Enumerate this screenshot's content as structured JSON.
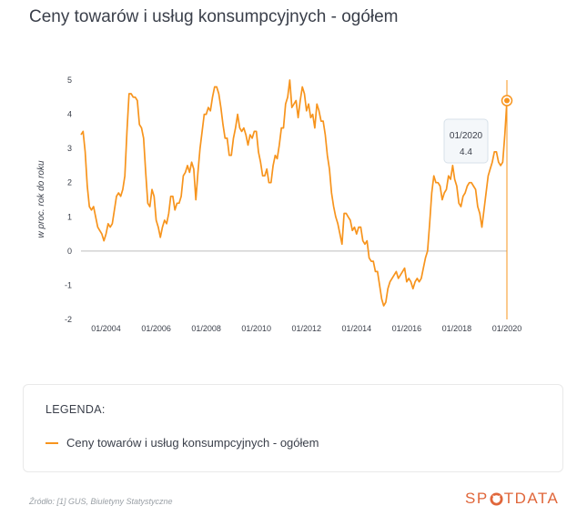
{
  "title": "Ceny towarów i usług konsumpcyjnych - ogółem",
  "legend": {
    "title": "LEGENDA:",
    "item_label": "Ceny towarów i usług konsumpcyjnych - ogółem"
  },
  "source": "Źródło: [1] GUS, Biuletyny Statystyczne",
  "brand": {
    "left": "SP",
    "right": "TDATA",
    "mark_icon": "lifebuoy-icon"
  },
  "colors": {
    "series": "#f7941d",
    "axis_zero": "#bdbdbd",
    "grid": "#eeeeee",
    "text": "#3a3f4a",
    "brand": "#e0663a"
  },
  "tooltip": {
    "date": "01/2020",
    "value": "4.4"
  },
  "chart_data": {
    "type": "line",
    "title": "Ceny towarów i usług konsumpcyjnych - ogółem",
    "ylabel": "w proc. rok do roku",
    "ylim": [
      -2,
      5
    ],
    "yticks": [
      "5",
      "4",
      "3",
      "2",
      "1",
      "0",
      "-1",
      "-2"
    ],
    "xlim": [
      "01/2003",
      "01/2020"
    ],
    "xticks": [
      "01/2004",
      "01/2006",
      "01/2008",
      "01/2010",
      "01/2012",
      "01/2014",
      "01/2016",
      "01/2018",
      "01/2020"
    ],
    "grid": false,
    "legend_position": "bottom",
    "series": [
      {
        "name": "Ceny towarów i usług konsumpcyjnych - ogółem",
        "x": [
          "01/2003",
          "02/2003",
          "03/2003",
          "04/2003",
          "05/2003",
          "06/2003",
          "07/2003",
          "08/2003",
          "09/2003",
          "10/2003",
          "11/2003",
          "12/2003",
          "01/2004",
          "02/2004",
          "03/2004",
          "04/2004",
          "05/2004",
          "06/2004",
          "07/2004",
          "08/2004",
          "09/2004",
          "10/2004",
          "11/2004",
          "12/2004",
          "01/2005",
          "02/2005",
          "03/2005",
          "04/2005",
          "05/2005",
          "06/2005",
          "07/2005",
          "08/2005",
          "09/2005",
          "10/2005",
          "11/2005",
          "12/2005",
          "01/2006",
          "02/2006",
          "03/2006",
          "04/2006",
          "05/2006",
          "06/2006",
          "07/2006",
          "08/2006",
          "09/2006",
          "10/2006",
          "11/2006",
          "12/2006",
          "01/2007",
          "02/2007",
          "03/2007",
          "04/2007",
          "05/2007",
          "06/2007",
          "07/2007",
          "08/2007",
          "09/2007",
          "10/2007",
          "11/2007",
          "12/2007",
          "01/2008",
          "02/2008",
          "03/2008",
          "04/2008",
          "05/2008",
          "06/2008",
          "07/2008",
          "08/2008",
          "09/2008",
          "10/2008",
          "11/2008",
          "12/2008",
          "01/2009",
          "02/2009",
          "03/2009",
          "04/2009",
          "05/2009",
          "06/2009",
          "07/2009",
          "08/2009",
          "09/2009",
          "10/2009",
          "11/2009",
          "12/2009",
          "01/2010",
          "02/2010",
          "03/2010",
          "04/2010",
          "05/2010",
          "06/2010",
          "07/2010",
          "08/2010",
          "09/2010",
          "10/2010",
          "11/2010",
          "12/2010",
          "01/2011",
          "02/2011",
          "03/2011",
          "04/2011",
          "05/2011",
          "06/2011",
          "07/2011",
          "08/2011",
          "09/2011",
          "10/2011",
          "11/2011",
          "12/2011",
          "01/2012",
          "02/2012",
          "03/2012",
          "04/2012",
          "05/2012",
          "06/2012",
          "07/2012",
          "08/2012",
          "09/2012",
          "10/2012",
          "11/2012",
          "12/2012",
          "01/2013",
          "02/2013",
          "03/2013",
          "04/2013",
          "05/2013",
          "06/2013",
          "07/2013",
          "08/2013",
          "09/2013",
          "10/2013",
          "11/2013",
          "12/2013",
          "01/2014",
          "02/2014",
          "03/2014",
          "04/2014",
          "05/2014",
          "06/2014",
          "07/2014",
          "08/2014",
          "09/2014",
          "10/2014",
          "11/2014",
          "12/2014",
          "01/2015",
          "02/2015",
          "03/2015",
          "04/2015",
          "05/2015",
          "06/2015",
          "07/2015",
          "08/2015",
          "09/2015",
          "10/2015",
          "11/2015",
          "12/2015",
          "01/2016",
          "02/2016",
          "03/2016",
          "04/2016",
          "05/2016",
          "06/2016",
          "07/2016",
          "08/2016",
          "09/2016",
          "10/2016",
          "11/2016",
          "12/2016",
          "01/2017",
          "02/2017",
          "03/2017",
          "04/2017",
          "05/2017",
          "06/2017",
          "07/2017",
          "08/2017",
          "09/2017",
          "10/2017",
          "11/2017",
          "12/2017",
          "01/2018",
          "02/2018",
          "03/2018",
          "04/2018",
          "05/2018",
          "06/2018",
          "07/2018",
          "08/2018",
          "09/2018",
          "10/2018",
          "11/2018",
          "12/2018",
          "01/2019",
          "02/2019",
          "03/2019",
          "04/2019",
          "05/2019",
          "06/2019",
          "07/2019",
          "08/2019",
          "09/2019",
          "10/2019",
          "11/2019",
          "12/2019",
          "01/2020"
        ],
        "values": [
          3.4,
          3.5,
          2.9,
          1.9,
          1.3,
          1.2,
          1.3,
          1.0,
          0.7,
          0.6,
          0.5,
          0.3,
          0.5,
          0.8,
          0.7,
          0.8,
          1.2,
          1.6,
          1.7,
          1.6,
          1.8,
          2.2,
          3.5,
          4.6,
          4.6,
          4.5,
          4.5,
          4.4,
          3.7,
          3.6,
          3.3,
          2.3,
          1.4,
          1.3,
          1.8,
          1.6,
          0.9,
          0.7,
          0.4,
          0.7,
          0.9,
          0.8,
          1.1,
          1.6,
          1.6,
          1.2,
          1.4,
          1.4,
          1.6,
          2.2,
          2.3,
          2.5,
          2.3,
          2.6,
          2.4,
          1.5,
          2.3,
          3.0,
          3.5,
          4.0,
          4.0,
          4.2,
          4.1,
          4.5,
          4.8,
          4.8,
          4.6,
          4.2,
          3.7,
          3.3,
          3.3,
          2.8,
          2.8,
          3.3,
          3.6,
          4.0,
          3.6,
          3.5,
          3.6,
          3.4,
          3.1,
          3.4,
          3.3,
          3.5,
          3.5,
          2.9,
          2.6,
          2.2,
          2.2,
          2.4,
          2.0,
          2.0,
          2.5,
          2.8,
          2.7,
          3.1,
          3.6,
          3.6,
          4.3,
          4.5,
          5.0,
          4.2,
          4.3,
          4.4,
          3.9,
          4.4,
          4.8,
          4.6,
          4.1,
          4.3,
          3.9,
          4.0,
          3.6,
          4.3,
          4.1,
          3.8,
          3.8,
          3.4,
          2.8,
          2.4,
          1.7,
          1.3,
          1.0,
          0.8,
          0.5,
          0.2,
          1.1,
          1.1,
          1.0,
          0.9,
          0.6,
          0.7,
          0.5,
          0.7,
          0.7,
          0.3,
          0.2,
          0.3,
          -0.2,
          -0.3,
          -0.3,
          -0.6,
          -0.6,
          -1.0,
          -1.4,
          -1.6,
          -1.5,
          -1.1,
          -0.9,
          -0.8,
          -0.7,
          -0.6,
          -0.8,
          -0.7,
          -0.6,
          -0.5,
          -0.9,
          -0.8,
          -0.9,
          -1.1,
          -0.9,
          -0.8,
          -0.9,
          -0.8,
          -0.5,
          -0.2,
          0.0,
          0.8,
          1.7,
          2.2,
          2.0,
          2.0,
          1.9,
          1.5,
          1.7,
          1.8,
          2.2,
          2.1,
          2.5,
          2.1,
          1.9,
          1.4,
          1.3,
          1.6,
          1.7,
          1.9,
          2.0,
          2.0,
          1.9,
          1.8,
          1.3,
          1.1,
          0.7,
          1.2,
          1.7,
          2.2,
          2.4,
          2.6,
          2.9,
          2.9,
          2.6,
          2.5,
          2.6,
          3.4,
          4.4
        ]
      }
    ]
  }
}
